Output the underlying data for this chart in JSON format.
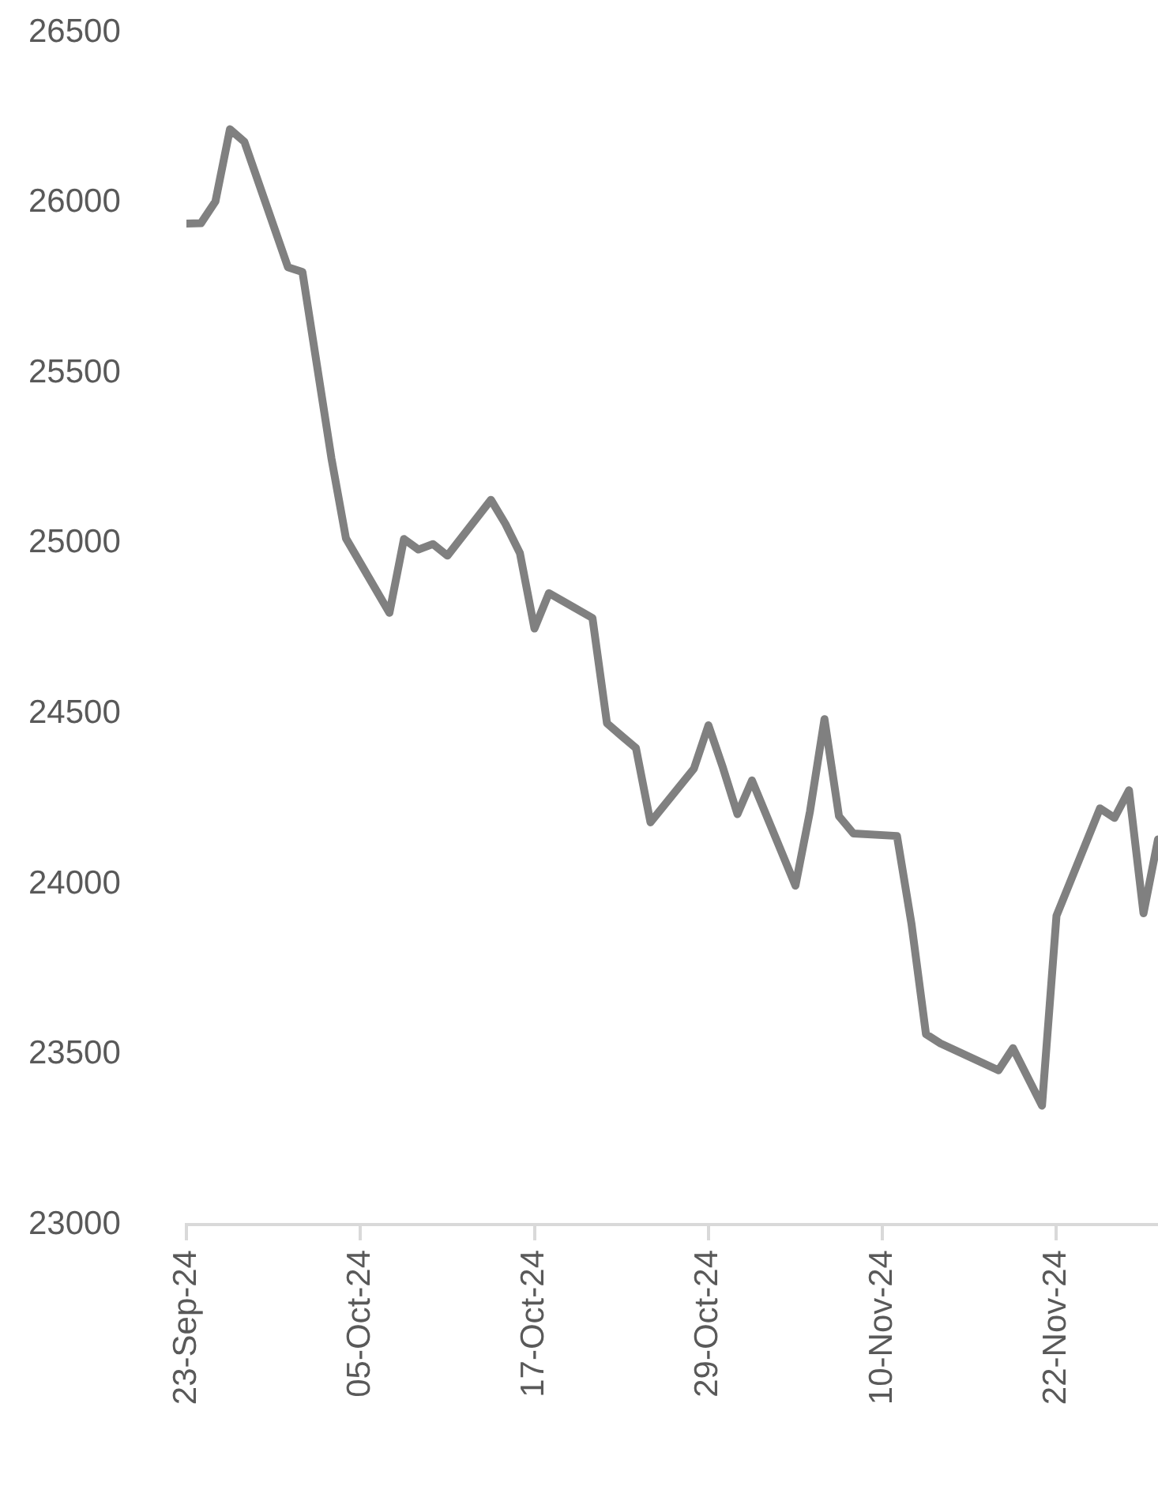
{
  "chart_data": {
    "type": "line",
    "x": [
      "--09-23",
      "--09-24",
      "--09-25",
      "--09-26",
      "--09-27",
      "--09-30",
      "--10-01",
      "--10-03",
      "--10-04",
      "--10-07",
      "--10-08",
      "--10-09",
      "--10-10",
      "--10-11",
      "--10-14",
      "--10-15",
      "--10-16",
      "--10-17",
      "--10-18",
      "--10-21",
      "--10-22",
      "--10-23",
      "--10-24",
      "--10-25",
      "--10-28",
      "--10-29",
      "--10-30",
      "--10-31",
      "--11-01",
      "--11-04",
      "--11-05",
      "--11-06",
      "--11-07",
      "--11-08",
      "--11-11",
      "--11-12",
      "--11-13",
      "--11-14",
      "--11-18",
      "--11-19",
      "--11-21",
      "--11-22",
      "--11-25",
      "--11-26",
      "--11-27",
      "--11-28",
      "--11-29"
    ],
    "series": [
      {
        "color": "#808080",
        "values": [
          25939,
          25940,
          26004,
          26216,
          26179,
          25811,
          25797,
          25250,
          25015,
          24796,
          25013,
          24982,
          24998,
          24964,
          25128,
          25057,
          24971,
          24750,
          24854,
          24781,
          24472,
          24435,
          24399,
          24181,
          24339,
          24466,
          24341,
          24205,
          24304,
          23995,
          24213,
          24484,
          24199,
          24148,
          24141,
          23883,
          23559,
          23532,
          23453,
          23518,
          23349,
          23907,
          24222,
          24194,
          24275,
          23914,
          24131
        ]
      }
    ],
    "xlim": [
      "--09-23",
      "--11-29"
    ],
    "xticks": [
      {
        "value": "--09-23",
        "label": "23-Sep-24"
      },
      {
        "value": "--10-05",
        "label": "05-Oct-24"
      },
      {
        "value": "--10-17",
        "label": "17-Oct-24"
      },
      {
        "value": "--10-29",
        "label": "29-Oct-24"
      },
      {
        "value": "--11-10",
        "label": "10-Nov-24"
      },
      {
        "value": "--11-22",
        "label": "22-Nov-24"
      }
    ],
    "ylim": [
      23000,
      26500
    ],
    "yticks": [
      23000,
      23500,
      24000,
      24500,
      25000,
      25500,
      26000,
      26500
    ],
    "grid": false,
    "legend": false,
    "marker": "none",
    "line_style": "solid"
  }
}
